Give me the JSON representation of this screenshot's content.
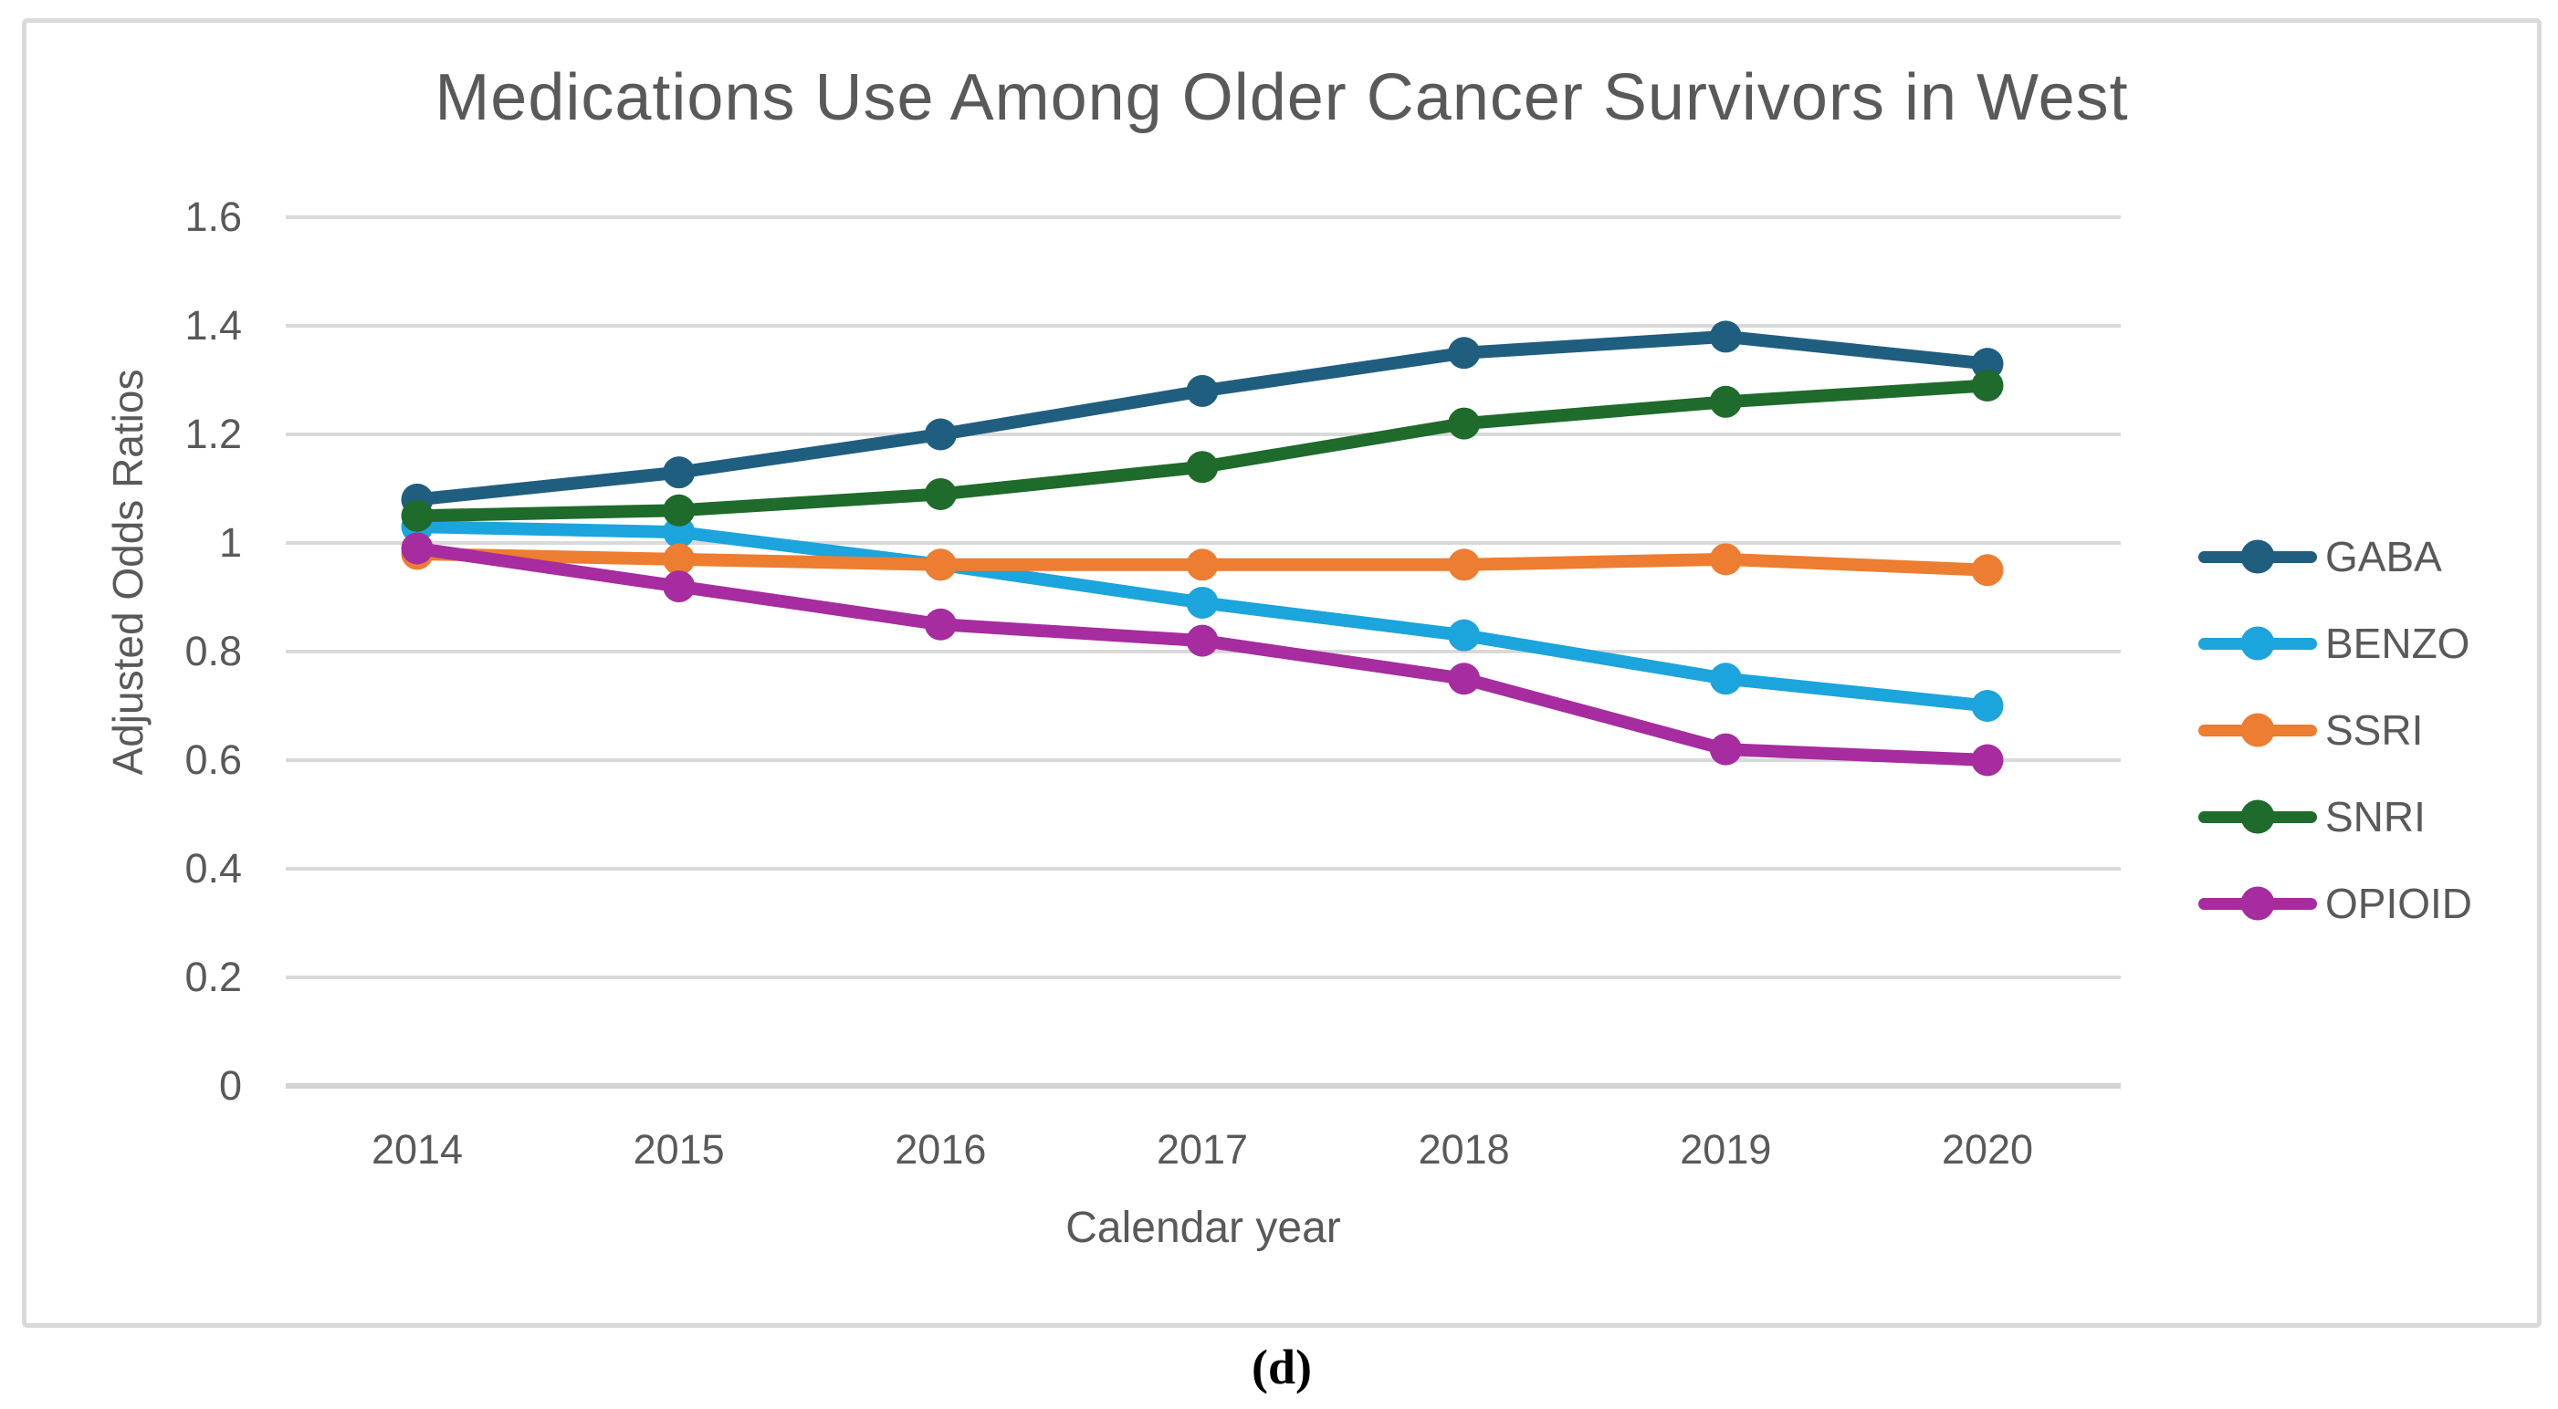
{
  "figure": {
    "caption": "(d)"
  },
  "chart": {
    "title": "Medications Use Among Older Cancer Survivors in West",
    "x_axis_title": "Calendar year",
    "y_axis_title": "Adjusted Odds Ratios",
    "text_color": "#595959",
    "gridline_color": "#D9D9D9",
    "axis_line_color": "#D3D3D3",
    "frame_border_color": "#D9D9D9",
    "background_color": "#FFFFFF"
  },
  "chart_data": {
    "type": "line",
    "title": "Medications Use Among Older Cancer Survivors in West",
    "xlabel": "Calendar year",
    "ylabel": "Adjusted Odds Ratios",
    "categories": [
      "2014",
      "2015",
      "2016",
      "2017",
      "2018",
      "2019",
      "2020"
    ],
    "series": [
      {
        "name": "GABA",
        "color": "#205E80",
        "values": [
          1.08,
          1.13,
          1.2,
          1.28,
          1.35,
          1.38,
          1.33
        ]
      },
      {
        "name": "BENZO",
        "color": "#1CA4DC",
        "values": [
          1.03,
          1.02,
          0.96,
          0.89,
          0.83,
          0.75,
          0.7
        ]
      },
      {
        "name": "SSRI",
        "color": "#ED7D31",
        "values": [
          0.98,
          0.97,
          0.96,
          0.96,
          0.96,
          0.97,
          0.95
        ]
      },
      {
        "name": "SNRI",
        "color": "#1E6B2B",
        "values": [
          1.05,
          1.06,
          1.09,
          1.14,
          1.22,
          1.26,
          1.29
        ]
      },
      {
        "name": "OPIOID",
        "color": "#A62C9F",
        "values": [
          0.99,
          0.92,
          0.85,
          0.82,
          0.75,
          0.62,
          0.6
        ]
      }
    ],
    "ylim": [
      0,
      1.6
    ],
    "y_ticks": [
      {
        "label": "1.6",
        "value": 1.6
      },
      {
        "label": "1.4",
        "value": 1.4
      },
      {
        "label": "1.2",
        "value": 1.2
      },
      {
        "label": "1",
        "value": 1.0
      },
      {
        "label": "0.8",
        "value": 0.8
      },
      {
        "label": "0.6",
        "value": 0.6
      },
      {
        "label": "0.4",
        "value": 0.4
      },
      {
        "label": "0.2",
        "value": 0.2
      },
      {
        "label": "0",
        "value": 0.0
      }
    ],
    "grid": true,
    "legend_position": "right",
    "marker": "circle"
  }
}
